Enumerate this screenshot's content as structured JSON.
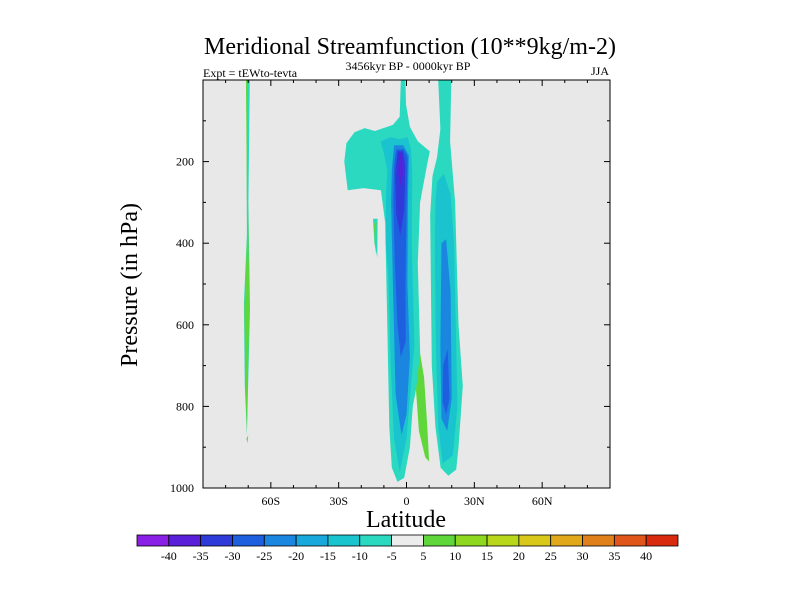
{
  "chart_data": {
    "type": "contour",
    "title": "Meridional Streamfunction (10**9kg/m-2)",
    "subtitle_left": "Expt = tEWto-tevta",
    "subtitle_center": "3456kyr BP - 0000kyr BP",
    "subtitle_right": "JJA",
    "xlabel": "Latitude",
    "ylabel": "Pressure (in hPa)",
    "xlim": [
      -90,
      90
    ],
    "ylim": [
      0,
      1000
    ],
    "y_inverted": true,
    "x_ticks": [
      {
        "value": -60,
        "label": "60S"
      },
      {
        "value": -30,
        "label": "30S"
      },
      {
        "value": 0,
        "label": "0"
      },
      {
        "value": 30,
        "label": "30N"
      },
      {
        "value": 60,
        "label": "60N"
      }
    ],
    "y_ticks": [
      {
        "value": 200,
        "label": "200"
      },
      {
        "value": 400,
        "label": "400"
      },
      {
        "value": 600,
        "label": "600"
      },
      {
        "value": 800,
        "label": "800"
      },
      {
        "value": 1000,
        "label": "1000"
      }
    ],
    "colorbar": {
      "labels": [
        "-40",
        "-35",
        "-30",
        "-25",
        "-20",
        "-15",
        "-10",
        "-5",
        "5",
        "10",
        "15",
        "20",
        "25",
        "30",
        "35",
        "40"
      ],
      "colors": [
        "#8a1fe6",
        "#5a1fd9",
        "#2f3bd8",
        "#1e5fe0",
        "#1a86e0",
        "#19a8dc",
        "#19c4cf",
        "#2ad9c0",
        "#ececec",
        "#5fd63a",
        "#8ed81f",
        "#b8d61a",
        "#d9c81a",
        "#e0a81a",
        "#e0801a",
        "#e0551a",
        "#d92a10"
      ]
    },
    "regions": [
      {
        "name": "region-neg10-80s",
        "level": "-10",
        "color": "#2ad9c0",
        "points": [
          [
            -69.3,
            0
          ],
          [
            -70.9,
            0
          ],
          [
            -70.7,
            150
          ],
          [
            -70.6,
            380
          ],
          [
            -71.9,
            550
          ],
          [
            -71.5,
            750
          ],
          [
            -70.6,
            870
          ],
          [
            -70.2,
            780
          ],
          [
            -69.2,
            560
          ],
          [
            -69.9,
            300
          ]
        ]
      },
      {
        "name": "region-neg10-fragment",
        "level": "-10",
        "color": "#2ad9c0",
        "points": [
          [
            -14.8,
            340
          ],
          [
            -12.8,
            340
          ],
          [
            -12.9,
            435
          ],
          [
            -14.2,
            400
          ]
        ]
      },
      {
        "name": "region-neg10-main",
        "level": "-10",
        "color": "#2ad9c0",
        "points": [
          [
            -26,
            270
          ],
          [
            -27.5,
            200
          ],
          [
            -26.6,
            155
          ],
          [
            -23,
            128
          ],
          [
            -18.5,
            118
          ],
          [
            -14,
            125
          ],
          [
            -6,
            110
          ],
          [
            -3,
            90
          ],
          [
            -2.5,
            0
          ],
          [
            -0.5,
            0
          ],
          [
            -0.2,
            60
          ],
          [
            1.5,
            115
          ],
          [
            5,
            150
          ],
          [
            10.3,
            175
          ],
          [
            9,
            210
          ],
          [
            6,
            300
          ],
          [
            5,
            450
          ],
          [
            6.2,
            700
          ],
          [
            2.8,
            800
          ],
          [
            1.5,
            900
          ],
          [
            -1,
            975
          ],
          [
            -4,
            985
          ],
          [
            -6.5,
            950
          ],
          [
            -7.6,
            850
          ],
          [
            -8.5,
            600
          ],
          [
            -9.4,
            350
          ],
          [
            -11.3,
            270
          ],
          [
            -19,
            265
          ]
        ]
      },
      {
        "name": "region-neg10-20n",
        "level": "-10",
        "color": "#2ad9c0",
        "points": [
          [
            14,
            0
          ],
          [
            19.8,
            0
          ],
          [
            19.3,
            150
          ],
          [
            21.5,
            300
          ],
          [
            23,
            600
          ],
          [
            24.9,
            750
          ],
          [
            23,
            900
          ],
          [
            22,
            955
          ],
          [
            18.5,
            970
          ],
          [
            15.1,
            950
          ],
          [
            12.8,
            850
          ],
          [
            11.2,
            700
          ],
          [
            10.8,
            500
          ],
          [
            10.5,
            330
          ],
          [
            11.5,
            235
          ],
          [
            13.5,
            190
          ],
          [
            15,
            120
          ]
        ]
      },
      {
        "name": "region-neg15-eq",
        "level": "-15",
        "color": "#19c4cf",
        "points": [
          [
            -11.5,
            150
          ],
          [
            -7,
            140
          ],
          [
            -3,
            145
          ],
          [
            0.5,
            140
          ],
          [
            2,
            170
          ],
          [
            2.5,
            220
          ],
          [
            2.3,
            400
          ],
          [
            3.5,
            650
          ],
          [
            1.5,
            780
          ],
          [
            0,
            880
          ],
          [
            -3,
            960
          ],
          [
            -5.5,
            880
          ],
          [
            -7,
            700
          ],
          [
            -8,
            480
          ],
          [
            -9.2,
            400
          ],
          [
            -9,
            280
          ],
          [
            -8.5,
            220
          ],
          [
            -10,
            180
          ]
        ]
      },
      {
        "name": "region-neg15-20n",
        "level": "-15",
        "color": "#19c4cf",
        "points": [
          [
            13.5,
            250
          ],
          [
            16.5,
            230
          ],
          [
            19.5,
            280
          ],
          [
            21,
            400
          ],
          [
            22,
            650
          ],
          [
            22.5,
            800
          ],
          [
            20.5,
            920
          ],
          [
            16,
            940
          ],
          [
            14,
            850
          ],
          [
            13,
            650
          ],
          [
            12.5,
            420
          ],
          [
            12.8,
            300
          ]
        ]
      },
      {
        "name": "region-neg20-eq",
        "level": "-20",
        "color": "#1a86e0",
        "points": [
          [
            -5.5,
            160
          ],
          [
            -1.5,
            160
          ],
          [
            1,
            185
          ],
          [
            0.6,
            300
          ],
          [
            0.4,
            500
          ],
          [
            1.5,
            680
          ],
          [
            0,
            820
          ],
          [
            -2.2,
            870
          ],
          [
            -4.8,
            770
          ],
          [
            -6,
            500
          ],
          [
            -6.8,
            300
          ],
          [
            -6.5,
            220
          ]
        ]
      },
      {
        "name": "region-neg20-20n",
        "level": "-20",
        "color": "#1a86e0",
        "points": [
          [
            15.5,
            400
          ],
          [
            17.5,
            390
          ],
          [
            19.5,
            520
          ],
          [
            20,
            780
          ],
          [
            18,
            860
          ],
          [
            15.5,
            830
          ],
          [
            15,
            650
          ]
        ]
      },
      {
        "name": "region-neg25-eq",
        "level": "-25",
        "color": "#1e5fe0",
        "points": [
          [
            -4.5,
            170
          ],
          [
            -1.2,
            170
          ],
          [
            0.5,
            190
          ],
          [
            0,
            320
          ],
          [
            -0.5,
            500
          ],
          [
            -0.3,
            640
          ],
          [
            -2.5,
            680
          ],
          [
            -4,
            600
          ],
          [
            -5.2,
            440
          ],
          [
            -5.8,
            300
          ],
          [
            -5.5,
            210
          ]
        ]
      },
      {
        "name": "region-neg25-20n",
        "level": "-25",
        "color": "#1e5fe0",
        "points": [
          [
            16.2,
            700
          ],
          [
            18.2,
            660
          ],
          [
            19,
            780
          ],
          [
            17.5,
            820
          ],
          [
            16,
            790
          ]
        ]
      },
      {
        "name": "region-neg30-eq",
        "level": "-30",
        "color": "#2f3bd8",
        "points": [
          [
            -4,
            175
          ],
          [
            -1.5,
            175
          ],
          [
            -0.5,
            210
          ],
          [
            -1,
            320
          ],
          [
            -2.8,
            380
          ],
          [
            -4.5,
            330
          ],
          [
            -5,
            230
          ]
        ]
      },
      {
        "name": "region-neg35-eq",
        "level": "-35",
        "color": "#5a1fd9",
        "points": [
          [
            -3.3,
            180
          ],
          [
            -2,
            180
          ],
          [
            -1.6,
            230
          ],
          [
            -2.6,
            260
          ],
          [
            -3.6,
            230
          ]
        ]
      },
      {
        "name": "region-5-south",
        "level": "5",
        "color": "#5fd63a",
        "points": [
          [
            -70.8,
            880
          ],
          [
            -70,
            870
          ],
          [
            -70.3,
            890
          ]
        ]
      },
      {
        "name": "region-5-frag",
        "level": "5",
        "color": "#5fd63a",
        "points": [
          [
            -14.4,
            350
          ],
          [
            -13.4,
            350
          ],
          [
            -13.5,
            425
          ],
          [
            -14,
            400
          ]
        ]
      },
      {
        "name": "region-5-10n",
        "level": "5",
        "color": "#5fd63a",
        "points": [
          [
            6,
            670
          ],
          [
            7.8,
            730
          ],
          [
            9.2,
            850
          ],
          [
            10,
            935
          ],
          [
            8.3,
            925
          ],
          [
            5.5,
            860
          ],
          [
            4.2,
            760
          ]
        ]
      },
      {
        "name": "region-5-80s",
        "level": "5",
        "color": "#5fd63a",
        "points": [
          [
            -70.2,
            0
          ],
          [
            -71,
            0
          ],
          [
            -70.8,
            130
          ],
          [
            -70.5,
            380
          ],
          [
            -71.7,
            560
          ],
          [
            -71.2,
            760
          ],
          [
            -70.6,
            865
          ],
          [
            -70.3,
            770
          ],
          [
            -69.5,
            560
          ],
          [
            -70.1,
            300
          ]
        ]
      }
    ]
  }
}
